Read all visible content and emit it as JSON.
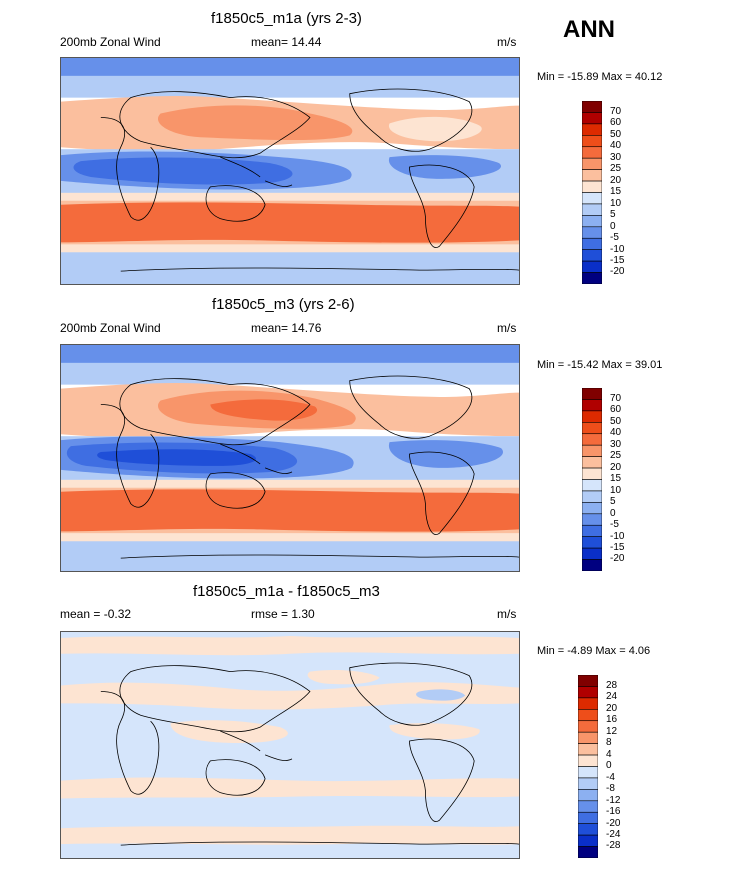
{
  "season": "ANN",
  "colors": {
    "r6": "#800000",
    "r5": "#b00000",
    "r4": "#dd2a00",
    "r3": "#ee4e1a",
    "r2": "#f46b3c",
    "r1": "#f8956a",
    "r0": "#fbbf9e",
    "w1": "#fde4d2",
    "b0": "#d5e5fb",
    "b1": "#b2ccf6",
    "b2": "#8cb0f1",
    "b3": "#6690ea",
    "b4": "#3f6ee2",
    "b5": "#1f4fd8",
    "b6": "#0a2fc8",
    "b7": "#000080",
    "coast": "#000000"
  },
  "chart_data": [
    {
      "type": "heatmap",
      "title": "f1850c5_m1a (yrs 2-3)",
      "left_label": "200mb Zonal Wind",
      "mean_text": "mean=  14.44",
      "units": "m/s",
      "minmax_text": "Min = -15.89 Max =  40.12",
      "min": -15.89,
      "max": 40.12,
      "mean": 14.44,
      "colorbar_levels": [
        "70",
        "60",
        "50",
        "40",
        "30",
        "25",
        "20",
        "15",
        "10",
        "5",
        "0",
        "-5",
        "-10",
        "-15",
        "-20"
      ]
    },
    {
      "type": "heatmap",
      "title": "f1850c5_m3 (yrs 2-6)",
      "left_label": "200mb Zonal Wind",
      "mean_text": "mean=  14.76",
      "units": "m/s",
      "minmax_text": "Min = -15.42 Max =  39.01",
      "min": -15.42,
      "max": 39.01,
      "mean": 14.76,
      "colorbar_levels": [
        "70",
        "60",
        "50",
        "40",
        "30",
        "25",
        "20",
        "15",
        "10",
        "5",
        "0",
        "-5",
        "-10",
        "-15",
        "-20"
      ]
    },
    {
      "type": "heatmap",
      "title": "f1850c5_m1a - f1850c5_m3",
      "left_label": "mean =  -0.32",
      "mean_text": "rmse =   1.30",
      "units": "m/s",
      "minmax_text": "Min =  -4.89 Max =   4.06",
      "min": -4.89,
      "max": 4.06,
      "mean": -0.32,
      "rmse": 1.3,
      "colorbar_levels": [
        "28",
        "24",
        "20",
        "16",
        "12",
        "8",
        "4",
        "0",
        "-4",
        "-8",
        "-12",
        "-16",
        "-20",
        "-24",
        "-28"
      ]
    }
  ]
}
